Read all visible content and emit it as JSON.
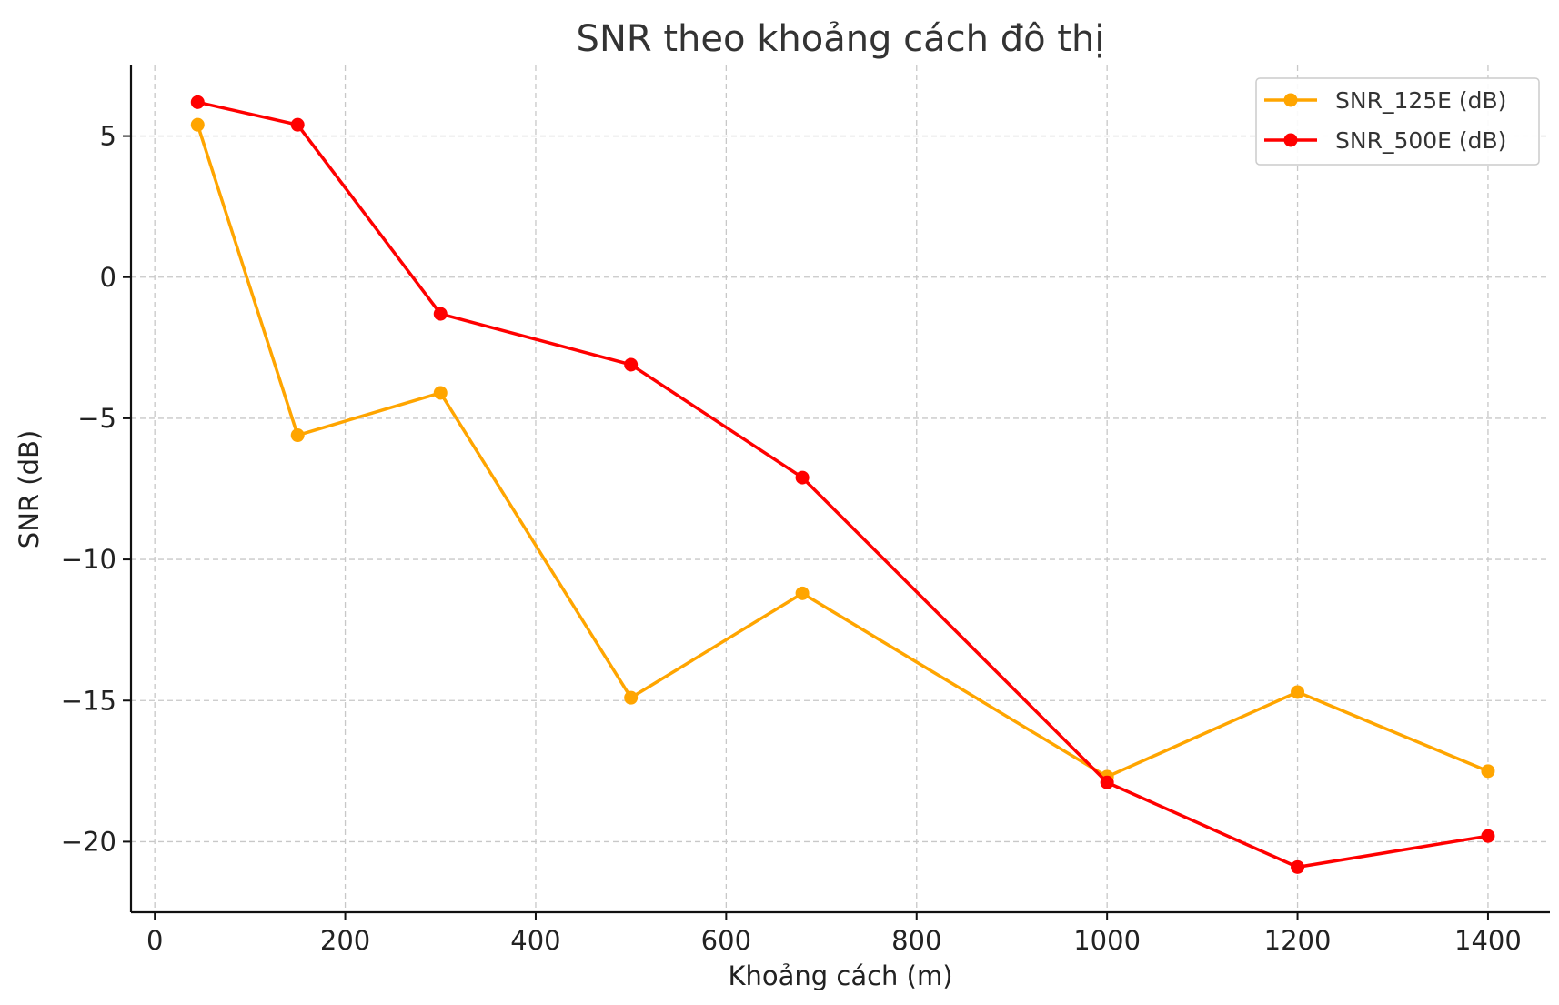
{
  "chart_data": {
    "type": "line",
    "title": "SNR theo khoảng cách đô thị",
    "xlabel": "Khoảng cách (m)",
    "ylabel": "SNR (dB)",
    "xlim": [
      -25,
      1465
    ],
    "ylim": [
      -22.5,
      7.5
    ],
    "xticks": [
      0,
      200,
      400,
      600,
      800,
      1000,
      1200,
      1400
    ],
    "xtick_labels": [
      "0",
      "200",
      "400",
      "600",
      "800",
      "1000",
      "1200",
      "1400"
    ],
    "yticks": [
      5,
      0,
      -5,
      -10,
      -15,
      -20
    ],
    "ytick_labels": [
      "5",
      "0",
      "−5",
      "−10",
      "−15",
      "−20"
    ],
    "grid": true,
    "legend_position": "top-right",
    "x": [
      45,
      150,
      300,
      500,
      680,
      1000,
      1200,
      1400
    ],
    "series": [
      {
        "name": "SNR_125E (dB)",
        "color": "#FFA500",
        "values": [
          5.4,
          -5.6,
          -4.1,
          -14.9,
          -11.2,
          -17.7,
          -14.7,
          -17.5
        ]
      },
      {
        "name": "SNR_500E (dB)",
        "color": "#FF0000",
        "values": [
          6.2,
          5.4,
          -1.3,
          -3.1,
          -7.1,
          -17.9,
          -20.9,
          -19.8
        ]
      }
    ]
  }
}
